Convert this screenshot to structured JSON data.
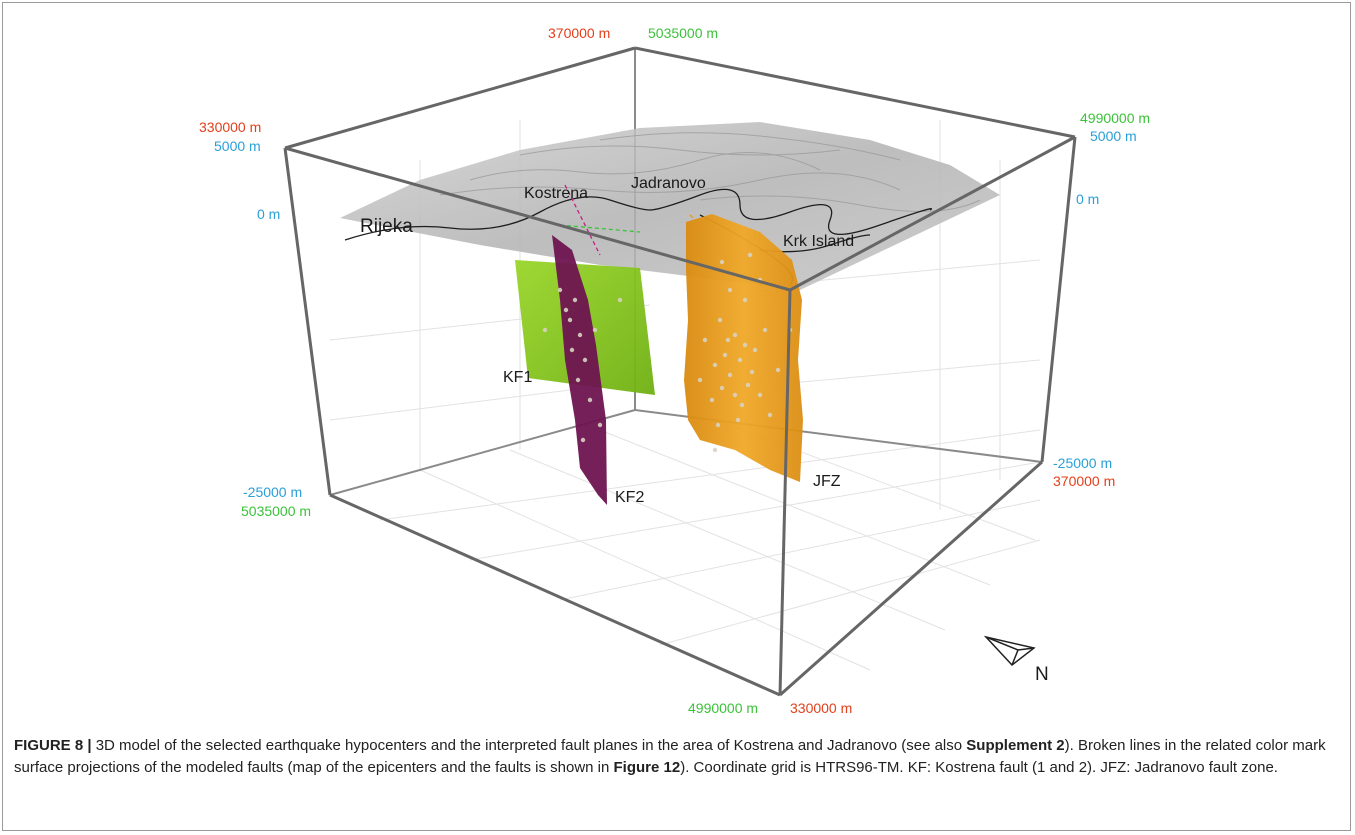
{
  "colors": {
    "red_labels": "#e2401b",
    "blue_labels": "#2a9fd8",
    "green_labels": "#3cc23a",
    "kf1": "#84c81c",
    "kf2": "#6e1450",
    "jfz": "#e79a1a",
    "box_edge": "#666666",
    "surface": "#b8b8b8"
  },
  "axis_labels": {
    "top_back_red": "370000 m",
    "top_back_green": "5035000 m",
    "top_left_red": "330000 m",
    "top_left_blue": "5000 m",
    "left_zero": "0 m",
    "top_right_green": "4990000 m",
    "top_right_blue": "5000 m",
    "right_zero": "0 m",
    "bottom_left_blue": "-25000 m",
    "bottom_left_green": "5035000 m",
    "bottom_right_blue": "-25000 m",
    "bottom_right_red": "370000 m",
    "bottom_front_green": "4990000 m",
    "bottom_front_red": "330000 m"
  },
  "place_labels": {
    "rijeka": "Rijeka",
    "kostrena": "Kostrena",
    "jadranovo": "Jadranovo",
    "krk": "Krk Island"
  },
  "fault_labels": {
    "kf1": "KF1",
    "kf2": "KF2",
    "jfz": "JFZ"
  },
  "north": "N",
  "caption": {
    "lead": "FIGURE 8 |",
    "t1": " 3D model of the selected earthquake hypocenters and the interpreted fault planes in the area of Kostrena and Jadranovo (see also ",
    "b1": "Supplement 2",
    "t2": "). Broken lines in the related color mark surface projections of the modeled faults (map of the epicenters and the faults is shown in ",
    "b2": "Figure 12",
    "t3": "). Coordinate grid is HTRS96-TM. KF: Kostrena fault (1 and 2). JFZ: Jadranovo fault zone."
  }
}
